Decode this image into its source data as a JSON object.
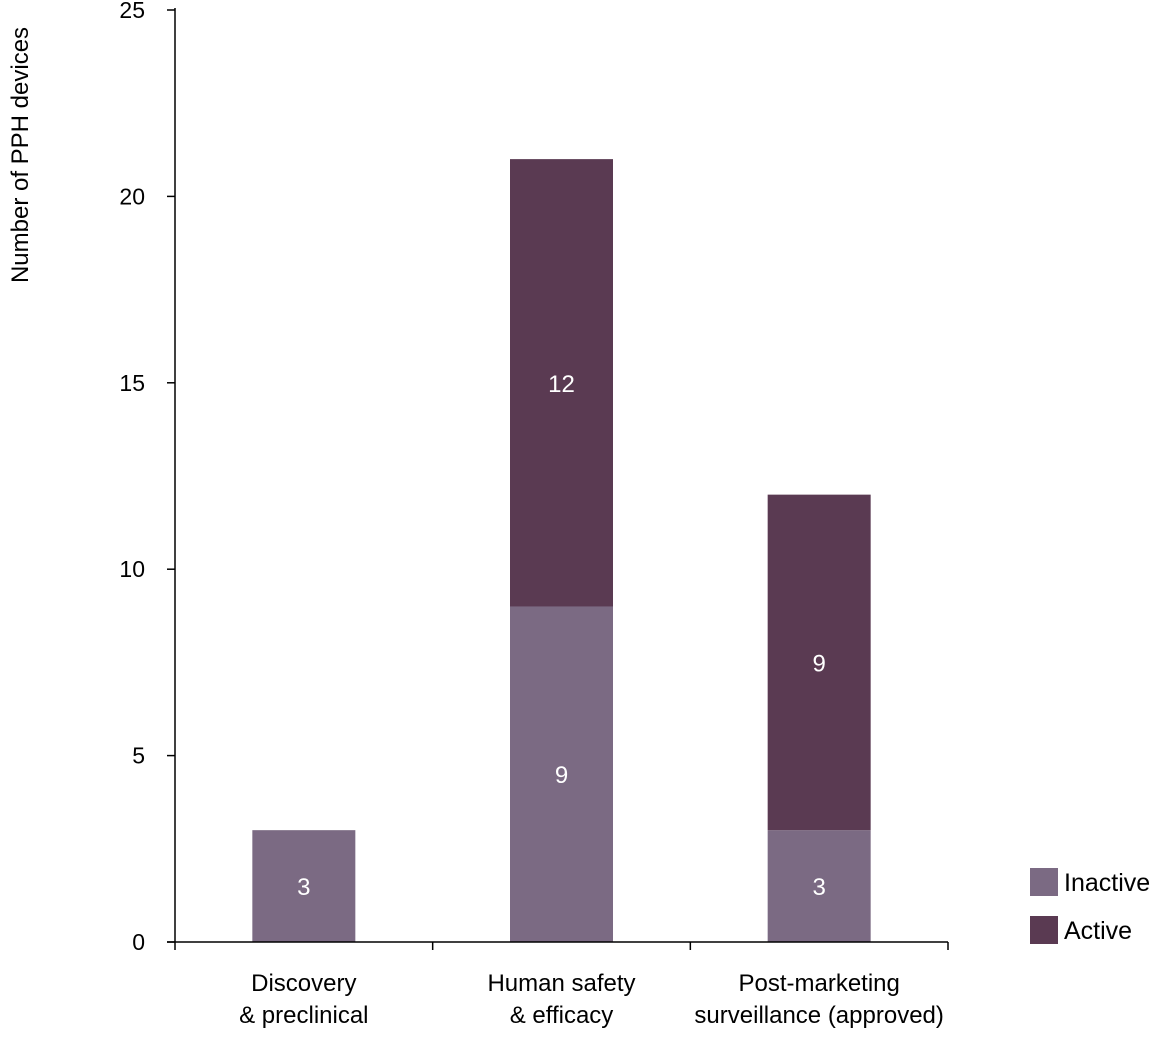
{
  "chart_data": {
    "type": "bar",
    "stacked": true,
    "categories": [
      [
        "Discovery",
        "& preclinical"
      ],
      [
        "Human safety",
        "& efficacy"
      ],
      [
        "Post-marketing",
        "surveillance (approved)"
      ]
    ],
    "series": [
      {
        "name": "Inactive",
        "values": [
          3,
          9,
          3
        ],
        "labels": [
          "3",
          "9",
          "3"
        ],
        "color": "#7b6a83"
      },
      {
        "name": "Active",
        "values": [
          0,
          12,
          9
        ],
        "labels": [
          "",
          "12",
          "9"
        ],
        "color": "#5a3a52"
      }
    ],
    "ylabel": "Number of PPH devices",
    "xlabel": "",
    "ylim": [
      0,
      25
    ],
    "yticks": [
      "0",
      "5",
      "10",
      "15",
      "20",
      "25"
    ],
    "grid": false,
    "legend_position": "bottom-right",
    "label_color": "#ffffff",
    "axis_color": "#000000",
    "text_color": "#000000"
  }
}
